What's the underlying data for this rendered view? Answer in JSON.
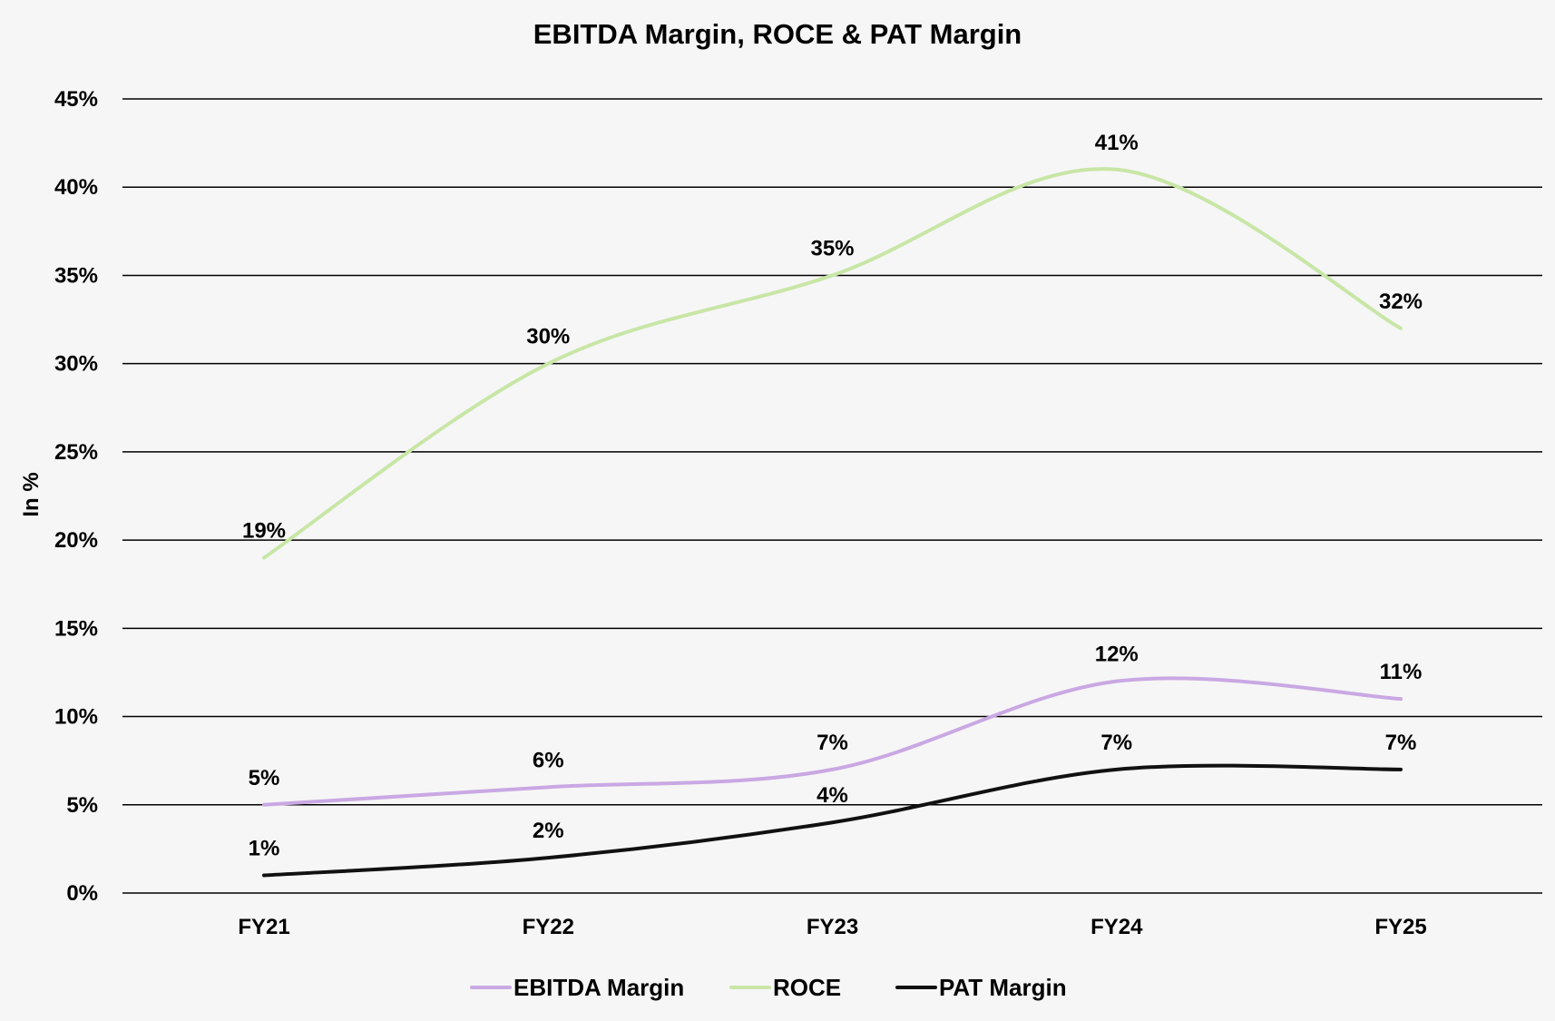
{
  "chart_data": {
    "type": "line",
    "title": "EBITDA Margin, ROCE & PAT Margin",
    "xlabel": "",
    "ylabel": "In %",
    "categories": [
      "FY21",
      "FY22",
      "FY23",
      "FY24",
      "FY25"
    ],
    "ylim": [
      0,
      45
    ],
    "yticks": [
      0,
      5,
      10,
      15,
      20,
      25,
      30,
      35,
      40,
      45
    ],
    "ytick_labels": [
      "0%",
      "5%",
      "10%",
      "15%",
      "20%",
      "25%",
      "30%",
      "35%",
      "40%",
      "45%"
    ],
    "grid": true,
    "smooth": true,
    "legend_position": "bottom",
    "series": [
      {
        "name": "EBITDA Margin",
        "color": "#c9a8e3",
        "values": [
          5,
          6,
          7,
          12,
          11
        ],
        "labels": [
          "5%",
          "6%",
          "7%",
          "12%",
          "11%"
        ]
      },
      {
        "name": "ROCE",
        "color": "#c8e6a6",
        "values": [
          19,
          30,
          35,
          41,
          32
        ],
        "labels": [
          "19%",
          "30%",
          "35%",
          "41%",
          "32%"
        ]
      },
      {
        "name": "PAT Margin",
        "color": "#111111",
        "values": [
          1,
          2,
          4,
          7,
          7
        ],
        "labels": [
          "1%",
          "2%",
          "4%",
          "7%",
          "7%"
        ]
      }
    ]
  }
}
